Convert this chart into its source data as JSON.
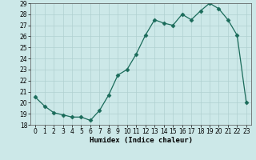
{
  "x": [
    0,
    1,
    2,
    3,
    4,
    5,
    6,
    7,
    8,
    9,
    10,
    11,
    12,
    13,
    14,
    15,
    16,
    17,
    18,
    19,
    20,
    21,
    22,
    23
  ],
  "y": [
    20.5,
    19.7,
    19.1,
    18.9,
    18.7,
    18.7,
    18.4,
    19.3,
    20.7,
    22.5,
    23.0,
    24.4,
    26.1,
    27.5,
    27.2,
    27.0,
    28.0,
    27.5,
    28.3,
    29.0,
    28.5,
    27.5,
    26.1,
    20.0
  ],
  "ylim": [
    18,
    29
  ],
  "xlim": [
    -0.5,
    23.5
  ],
  "yticks": [
    18,
    19,
    20,
    21,
    22,
    23,
    24,
    25,
    26,
    27,
    28,
    29
  ],
  "xticks": [
    0,
    1,
    2,
    3,
    4,
    5,
    6,
    7,
    8,
    9,
    10,
    11,
    12,
    13,
    14,
    15,
    16,
    17,
    18,
    19,
    20,
    21,
    22,
    23
  ],
  "xlabel": "Humidex (Indice chaleur)",
  "line_color": "#1a6b5a",
  "marker": "D",
  "marker_size": 2.5,
  "bg_color": "#cce8e8",
  "grid_color": "#b0d0d0",
  "tick_fontsize": 5.5,
  "xlabel_fontsize": 6.5
}
